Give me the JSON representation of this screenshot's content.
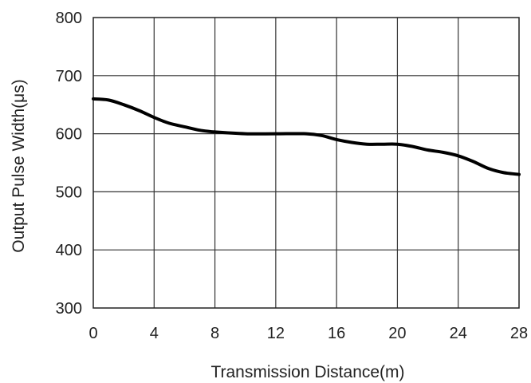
{
  "chart_data": {
    "type": "line",
    "xlabel": "Transmission Distance(m)",
    "ylabel": "Output Pulse Width(μs)",
    "xlim": [
      0,
      28
    ],
    "ylim": [
      300,
      800
    ],
    "x_ticks": [
      0,
      4,
      8,
      12,
      16,
      20,
      24,
      28
    ],
    "y_ticks": [
      300,
      400,
      500,
      600,
      700,
      800
    ],
    "grid": true,
    "series": [
      {
        "x": [
          0,
          1,
          2,
          3,
          4,
          5,
          6,
          7,
          8,
          10,
          12,
          14,
          15,
          16,
          17,
          18,
          19,
          20,
          21,
          22,
          23,
          24,
          25,
          26,
          27,
          28
        ],
        "y": [
          660,
          658,
          650,
          640,
          628,
          618,
          612,
          606,
          603,
          600,
          600,
          600,
          597,
          590,
          585,
          582,
          582,
          582,
          578,
          572,
          568,
          562,
          552,
          540,
          533,
          530
        ]
      }
    ],
    "colors": {
      "line": "#000000",
      "grid": "#333333",
      "axis": "#222222"
    }
  }
}
